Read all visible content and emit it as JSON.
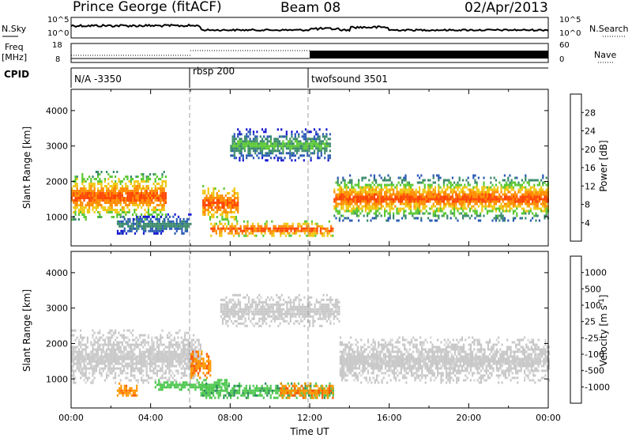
{
  "header": {
    "station": "Prince George (fitACF)",
    "beam": "Beam 08",
    "date": "02/Apr/2013"
  },
  "panel_labels": {
    "nsky": "N.Sky",
    "nsearch": "N.Search",
    "freq_top": "Freq",
    "freq_unit": "[MHz]",
    "nave": "Nave",
    "cpid": "CPID",
    "nsky_tick_top": "10^5",
    "nsky_tick_bot": "10^0",
    "nsearch_tick_top": "10^5",
    "nsearch_tick_bot": "10^0",
    "freq_tick_top": "18",
    "freq_tick_bot": "8",
    "nave_tick_top": "60",
    "nave_tick_bot": "0"
  },
  "cpid_segments": [
    {
      "label": "N/A -3350",
      "start": 0.0
    },
    {
      "label": "rbsp 200",
      "start": 6.0
    },
    {
      "label": "twofsound 3501",
      "start": 12.0
    }
  ],
  "colors": {
    "power": [
      "#1414d2",
      "#2a5ab4",
      "#3a8a6a",
      "#5ac832",
      "#f0c814",
      "#ff8c00",
      "#ff4600",
      "#e60000"
    ],
    "velocity": [
      "#e60000",
      "#ff5a00",
      "#ff9600",
      "#c8c8c8",
      "#c8c8c8",
      "#50c850",
      "#2a8a5a",
      "#1e50b4",
      "#1414b4"
    ]
  },
  "power_scale": {
    "label": "Power [dB]",
    "ticks": [
      "4",
      "8",
      "12",
      "16",
      "20",
      "24",
      "28"
    ]
  },
  "velocity_scale": {
    "label_main": "Velocity [m s",
    "label_exp": "-1",
    "label_end": "]",
    "ticks": [
      "-1000",
      "-500",
      "-100",
      "-25",
      "25",
      "100",
      "500",
      "1000"
    ]
  },
  "chart_data": [
    {
      "type": "heatmap",
      "title": "Prince George (fitACF) Beam 08 02/Apr/2013",
      "quantity": "Power [dB]",
      "xlabel": "Time UT",
      "ylabel": "Slant Range [km]",
      "xlim": [
        "00:00",
        "24:00"
      ],
      "ylim": [
        180,
        4600
      ],
      "x_ticks": [
        "00:00",
        "04:00",
        "08:00",
        "12:00",
        "16:00",
        "20:00",
        "00:00"
      ],
      "y_ticks": [
        1000,
        2000,
        3000,
        4000
      ],
      "colorbar_ticks": [
        4,
        8,
        12,
        16,
        20,
        24,
        28
      ],
      "regions": [
        {
          "t_start": 0.0,
          "t_end": 4.8,
          "range_low": 900,
          "range_high": 2300,
          "power": "12-28"
        },
        {
          "t_start": 2.3,
          "t_end": 6.0,
          "range_low": 500,
          "range_high": 1100,
          "power": "4-12"
        },
        {
          "t_start": 6.6,
          "t_end": 8.4,
          "range_low": 900,
          "range_high": 1900,
          "power": "16-28"
        },
        {
          "t_start": 7.0,
          "t_end": 13.2,
          "range_low": 450,
          "range_high": 900,
          "power": "16-28"
        },
        {
          "t_start": 8.0,
          "t_end": 13.0,
          "range_low": 2600,
          "range_high": 3500,
          "power": "4-16"
        },
        {
          "t_start": 13.2,
          "t_end": 24.0,
          "range_low": 900,
          "range_high": 2200,
          "power": "8-28"
        }
      ]
    },
    {
      "type": "heatmap",
      "quantity": "Velocity [m s^-1]",
      "xlabel": "Time UT",
      "ylabel": "Slant Range [km]",
      "xlim": [
        "00:00",
        "24:00"
      ],
      "ylim": [
        180,
        4600
      ],
      "x_ticks": [
        "00:00",
        "04:00",
        "08:00",
        "12:00",
        "16:00",
        "20:00",
        "00:00"
      ],
      "y_ticks": [
        1000,
        2000,
        3000,
        4000
      ],
      "colorbar_ticks": [
        -1000,
        -500,
        -100,
        -25,
        25,
        100,
        500,
        1000
      ],
      "regions": [
        {
          "t_start": 0.0,
          "t_end": 6.5,
          "range_low": 900,
          "range_high": 2400,
          "velocity": "-25 to 25"
        },
        {
          "t_start": 2.3,
          "t_end": 3.3,
          "range_low": 500,
          "range_high": 900,
          "velocity": "-500 to -100"
        },
        {
          "t_start": 4.2,
          "t_end": 7.8,
          "range_low": 700,
          "range_high": 1000,
          "velocity": "100 to 500"
        },
        {
          "t_start": 6.0,
          "t_end": 7.0,
          "range_low": 1000,
          "range_high": 1800,
          "velocity": "-500 to -100"
        },
        {
          "t_start": 6.5,
          "t_end": 13.2,
          "range_low": 450,
          "range_high": 900,
          "velocity": "25 to 100"
        },
        {
          "t_start": 10.5,
          "t_end": 13.2,
          "range_low": 450,
          "range_high": 900,
          "velocity": "-500 to -100"
        },
        {
          "t_start": 7.5,
          "t_end": 13.5,
          "range_low": 2500,
          "range_high": 3400,
          "velocity": "-25 to 25"
        },
        {
          "t_start": 13.5,
          "t_end": 24.0,
          "range_low": 900,
          "range_high": 2200,
          "velocity": "-25 to 25"
        }
      ]
    }
  ]
}
